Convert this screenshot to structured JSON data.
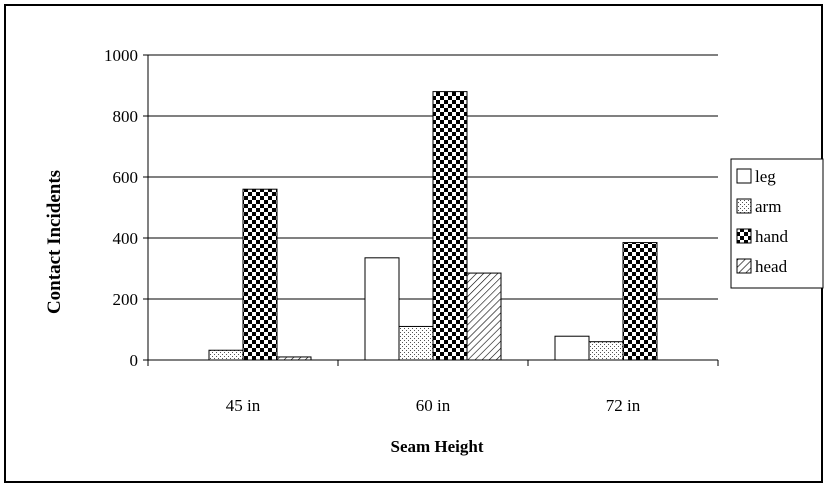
{
  "chart_data": {
    "type": "bar",
    "title": "",
    "xlabel": "Seam Height",
    "ylabel": "Contact Incidents",
    "categories": [
      "45 in",
      "60 in",
      "72 in"
    ],
    "ylim": [
      0,
      1000
    ],
    "yticks": [
      0,
      200,
      400,
      600,
      800,
      1000
    ],
    "grid": true,
    "legend_position": "right",
    "series": [
      {
        "name": "leg",
        "values": [
          0,
          335,
          78
        ],
        "pattern": "white"
      },
      {
        "name": "arm",
        "values": [
          32,
          110,
          60
        ],
        "pattern": "dots"
      },
      {
        "name": "hand",
        "values": [
          560,
          880,
          385
        ],
        "pattern": "checker"
      },
      {
        "name": "head",
        "values": [
          10,
          285,
          0
        ],
        "pattern": "diagonal"
      }
    ]
  }
}
